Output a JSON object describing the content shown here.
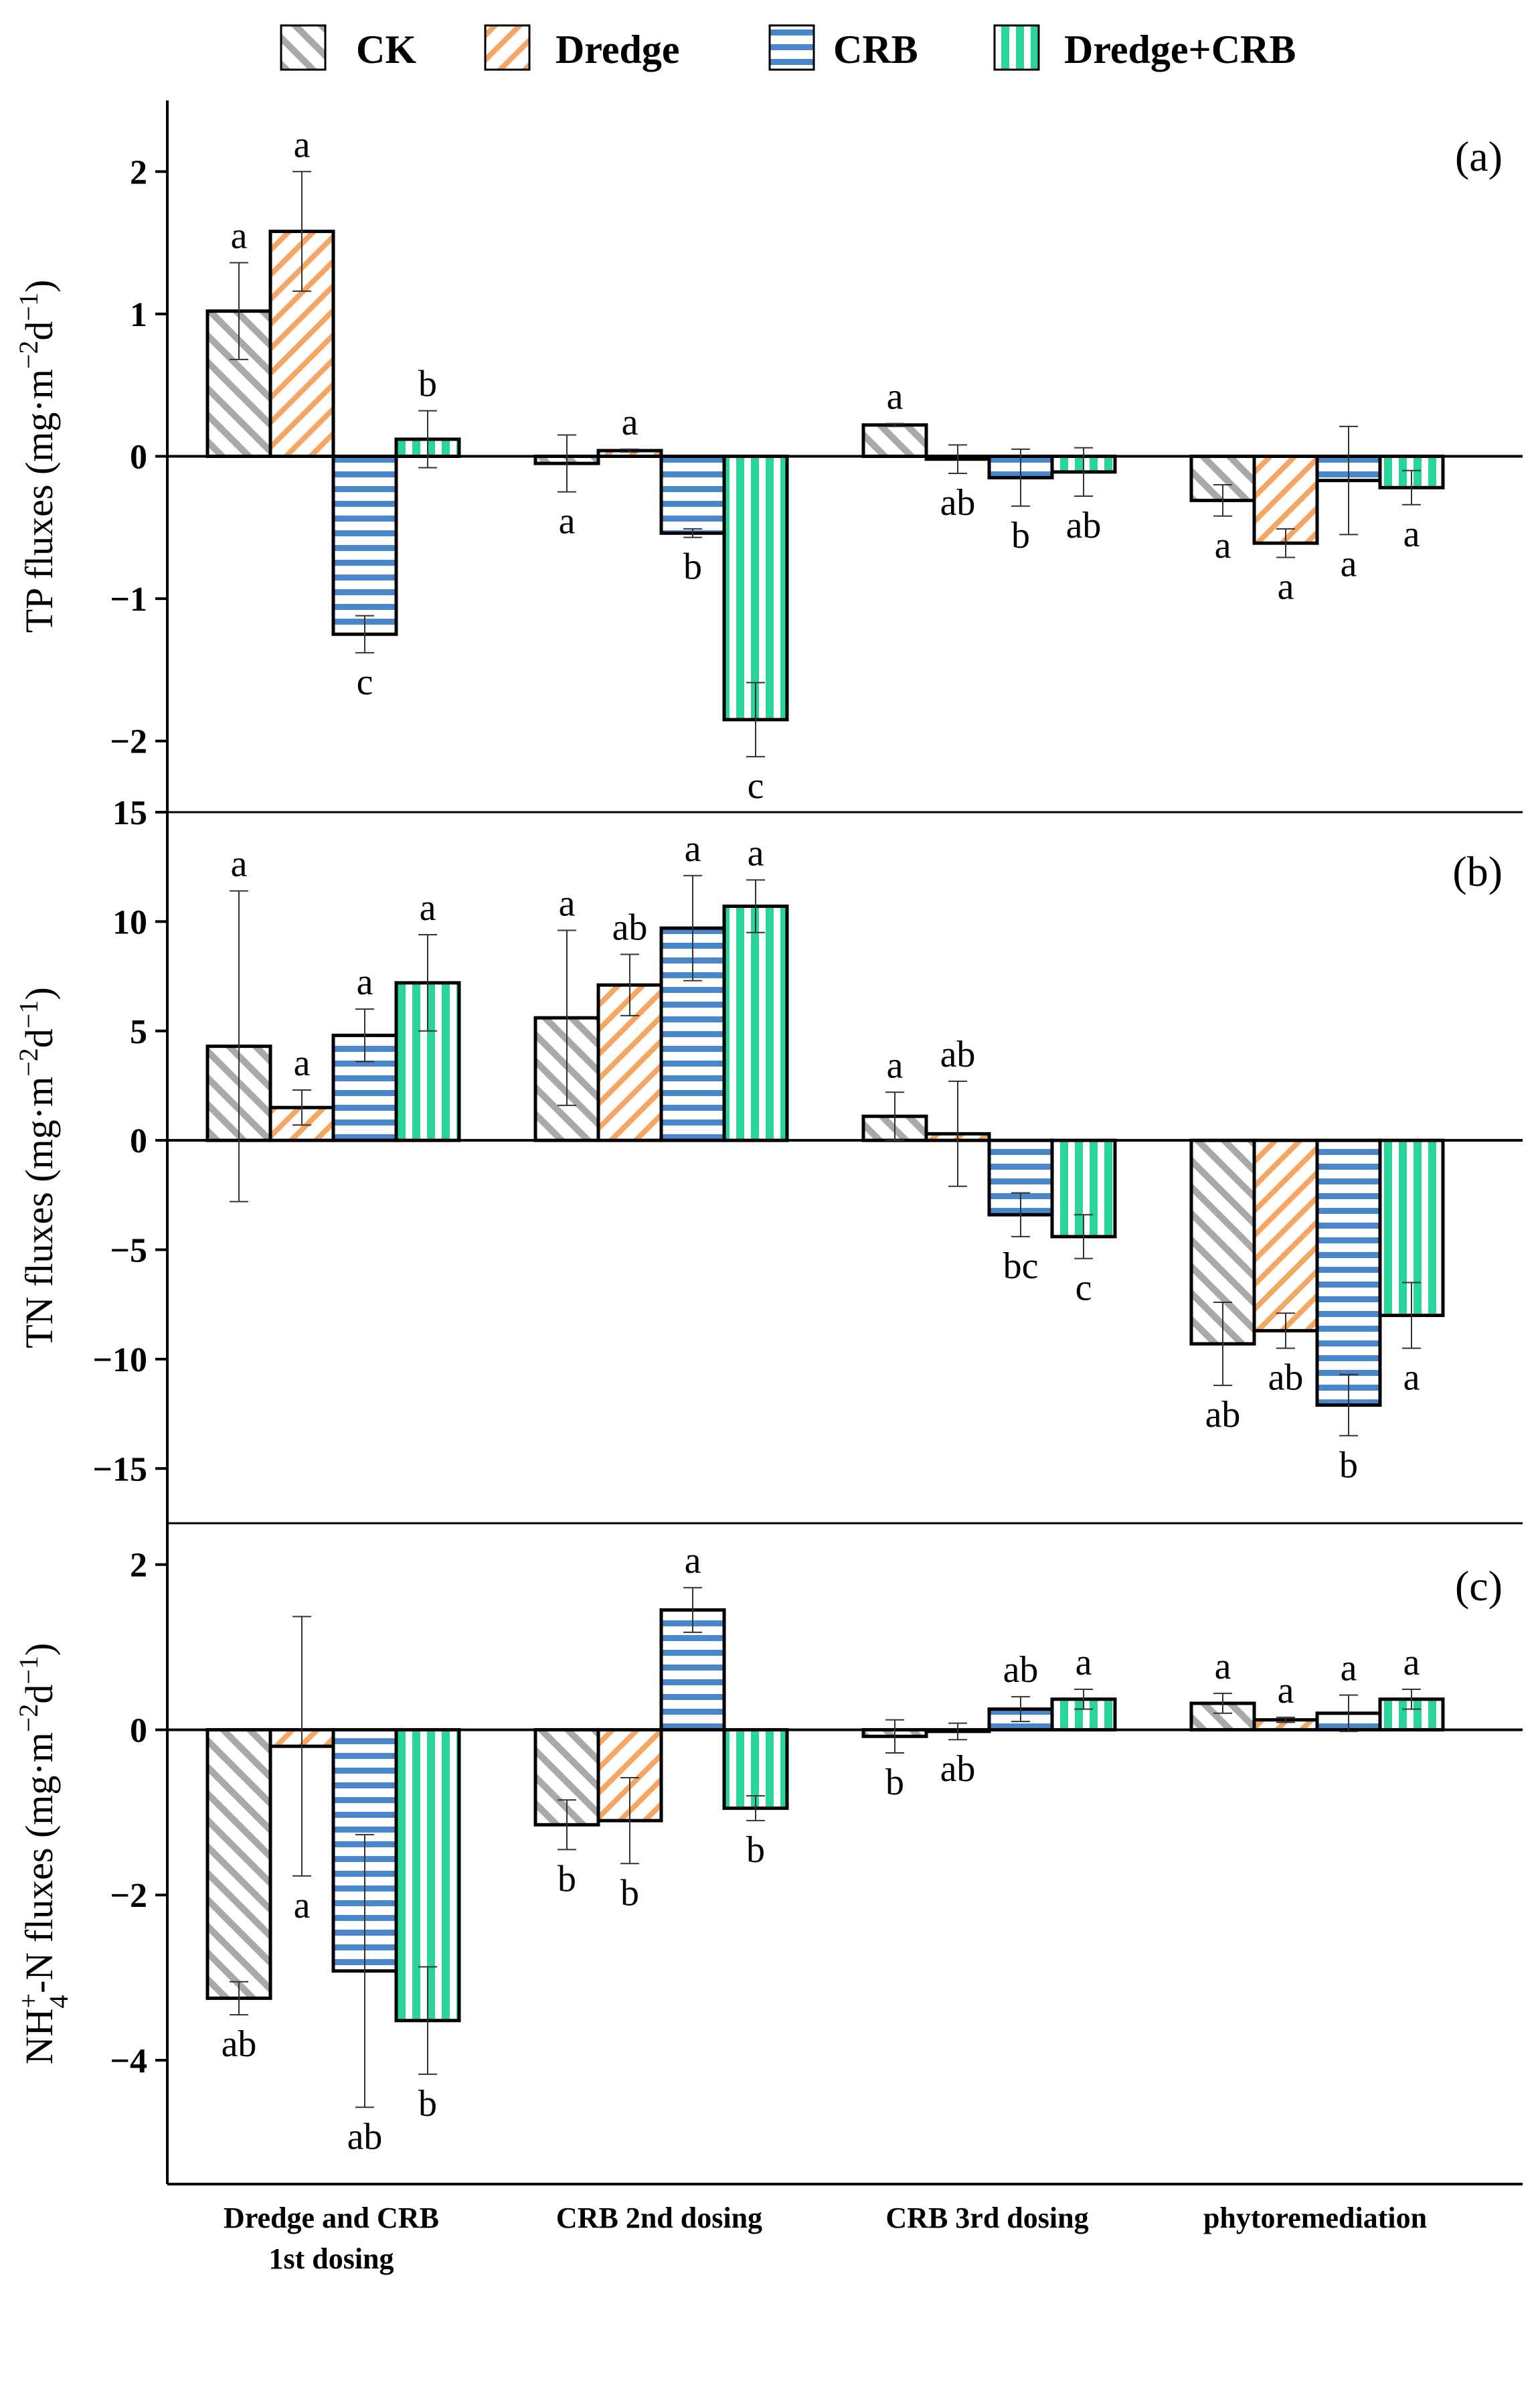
{
  "legend": [
    {
      "label": "CK",
      "pattern": "pat-ck"
    },
    {
      "label": "Dredge",
      "pattern": "pat-dredge"
    },
    {
      "label": "CRB",
      "pattern": "pat-crb"
    },
    {
      "label": "Dredge+CRB",
      "pattern": "pat-dc"
    }
  ],
  "colors": {
    "CK": "#a6aaa8",
    "Dredge": "#f5a663",
    "CRB": "#4a86cc",
    "Dredge+CRB": "#2bd59a",
    "axis": "#000000"
  },
  "categories": [
    {
      "line1": "Dredge and CRB",
      "line2": "1st dosing"
    },
    {
      "line1": "CRB 2nd dosing",
      "line2": ""
    },
    {
      "line1": "CRB 3rd dosing",
      "line2": ""
    },
    {
      "line1": "phytoremediation",
      "line2": ""
    }
  ],
  "chart_data": [
    {
      "type": "bar",
      "panel": "(a)",
      "ylabel_main": "TP  fluxes (mg·m",
      "ylabel_sup1": "−2",
      "ylabel_mid": "d",
      "ylabel_sup2": "−1",
      "ylabel_end": ")",
      "ylim": [
        -2.5,
        2.5
      ],
      "ticks": [
        -2,
        -1,
        0,
        1,
        2
      ],
      "tick_labels": [
        "−2",
        "−1",
        "0",
        "1",
        "2"
      ],
      "series": [
        {
          "name": "CK",
          "values": [
            1.02,
            -0.05,
            0.22,
            -0.31
          ],
          "errors": [
            0.34,
            0.2,
            0.01,
            0.11
          ],
          "letters": [
            "a",
            "a",
            "a",
            "a"
          ]
        },
        {
          "name": "Dredge",
          "values": [
            1.58,
            0.04,
            -0.02,
            -0.61
          ],
          "errors": [
            0.42,
            0.01,
            0.1,
            0.1
          ],
          "letters": [
            "a",
            "a",
            "ab",
            "a"
          ]
        },
        {
          "name": "CRB",
          "values": [
            -1.25,
            -0.54,
            -0.15,
            -0.17
          ],
          "errors": [
            0.13,
            0.03,
            0.2,
            0.38
          ],
          "letters": [
            "c",
            "b",
            "b",
            "a"
          ]
        },
        {
          "name": "Dredge+CRB",
          "values": [
            0.12,
            -1.85,
            -0.11,
            -0.22
          ],
          "errors": [
            0.2,
            0.26,
            0.17,
            0.12
          ],
          "letters": [
            "b",
            "c",
            "ab",
            "a"
          ]
        }
      ]
    },
    {
      "type": "bar",
      "panel": "(b)",
      "ylabel_main": "TN  fluxes (mg·m",
      "ylabel_sup1": "−2",
      "ylabel_mid": "d",
      "ylabel_sup2": "−1",
      "ylabel_end": ")",
      "ylim": [
        -17.5,
        15
      ],
      "ticks": [
        -15,
        -10,
        -5,
        0,
        5,
        10,
        15
      ],
      "tick_labels": [
        "−15",
        "−10",
        "−5",
        "0",
        "5",
        "10",
        "15"
      ],
      "series": [
        {
          "name": "CK",
          "values": [
            4.3,
            5.6,
            1.1,
            -9.3
          ],
          "errors": [
            7.1,
            4.0,
            1.1,
            1.9
          ],
          "letters": [
            "a",
            "a",
            "a",
            "ab"
          ]
        },
        {
          "name": "Dredge",
          "values": [
            1.5,
            7.1,
            0.3,
            -8.7
          ],
          "errors": [
            0.8,
            1.4,
            2.4,
            0.8
          ],
          "letters": [
            "a",
            "ab",
            "ab",
            "ab"
          ]
        },
        {
          "name": "CRB",
          "values": [
            4.8,
            9.7,
            -3.4,
            -12.1
          ],
          "errors": [
            1.2,
            2.4,
            1.0,
            1.4
          ],
          "letters": [
            "a",
            "a",
            "bc",
            "b"
          ]
        },
        {
          "name": "Dredge+CRB",
          "values": [
            7.2,
            10.7,
            -4.4,
            -8.0
          ],
          "errors": [
            2.2,
            1.2,
            1.0,
            1.5
          ],
          "letters": [
            "a",
            "a",
            "c",
            "a"
          ]
        }
      ]
    },
    {
      "type": "bar",
      "panel": "(c)",
      "ylabel_main": "NH",
      "ylabel_sub": "4",
      "ylabel_sup1": "+",
      "ylabel_mid": "-N  fluxes (mg·m",
      "ylabel_sup2": "−2",
      "ylabel_mid2": "d",
      "ylabel_sup3": "−1",
      "ylabel_end": ")",
      "ylim": [
        -5.5,
        2.5
      ],
      "ticks": [
        -4,
        -2,
        0,
        2
      ],
      "tick_labels": [
        "−4",
        "−2",
        "0",
        "2"
      ],
      "series": [
        {
          "name": "CK",
          "values": [
            -3.25,
            -1.15,
            -0.08,
            0.32
          ],
          "errors": [
            0.2,
            0.3,
            0.2,
            0.12
          ],
          "letters": [
            "ab",
            "b",
            "b",
            "a"
          ]
        },
        {
          "name": "Dredge",
          "values": [
            -0.2,
            -1.1,
            -0.02,
            0.12
          ],
          "errors": [
            1.57,
            0.52,
            0.1,
            0.03
          ],
          "letters": [
            "a",
            "b",
            "ab",
            "a"
          ]
        },
        {
          "name": "CRB",
          "values": [
            -2.92,
            1.45,
            0.25,
            0.2
          ],
          "errors": [
            1.65,
            0.27,
            0.15,
            0.22
          ],
          "letters": [
            "ab",
            "a",
            "ab",
            "a"
          ]
        },
        {
          "name": "Dredge+CRB",
          "values": [
            -3.52,
            -0.95,
            0.37,
            0.37
          ],
          "errors": [
            0.65,
            0.15,
            0.12,
            0.12
          ],
          "letters": [
            "b",
            "b",
            "a",
            "a"
          ]
        }
      ]
    }
  ]
}
